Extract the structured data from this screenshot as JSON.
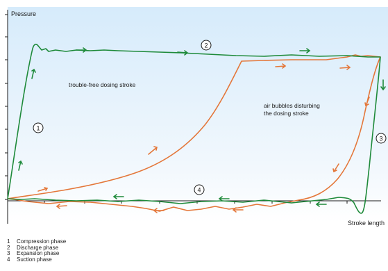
{
  "colors": {
    "green": "#1e8a3a",
    "orange": "#e4773a",
    "axis": "#1a1a1a",
    "background_top": "#d8ecfb",
    "background_bottom": "#ffffff"
  },
  "axes": {
    "y_label": "Pressure",
    "x_label": "Stroke length"
  },
  "annotations": {
    "trouble_free": "trouble-free dosing stroke",
    "air_bubbles_line1": "air bubbles disturbing",
    "air_bubbles_line2": "the dosing stroke"
  },
  "phase_markers": [
    "1",
    "2",
    "3",
    "4"
  ],
  "legend": [
    {
      "num": "1",
      "label": "Compression phase"
    },
    {
      "num": "2",
      "label": "Discharge phase"
    },
    {
      "num": "3",
      "label": "Expansion phase"
    },
    {
      "num": "4",
      "label": "Suction phase"
    }
  ]
}
